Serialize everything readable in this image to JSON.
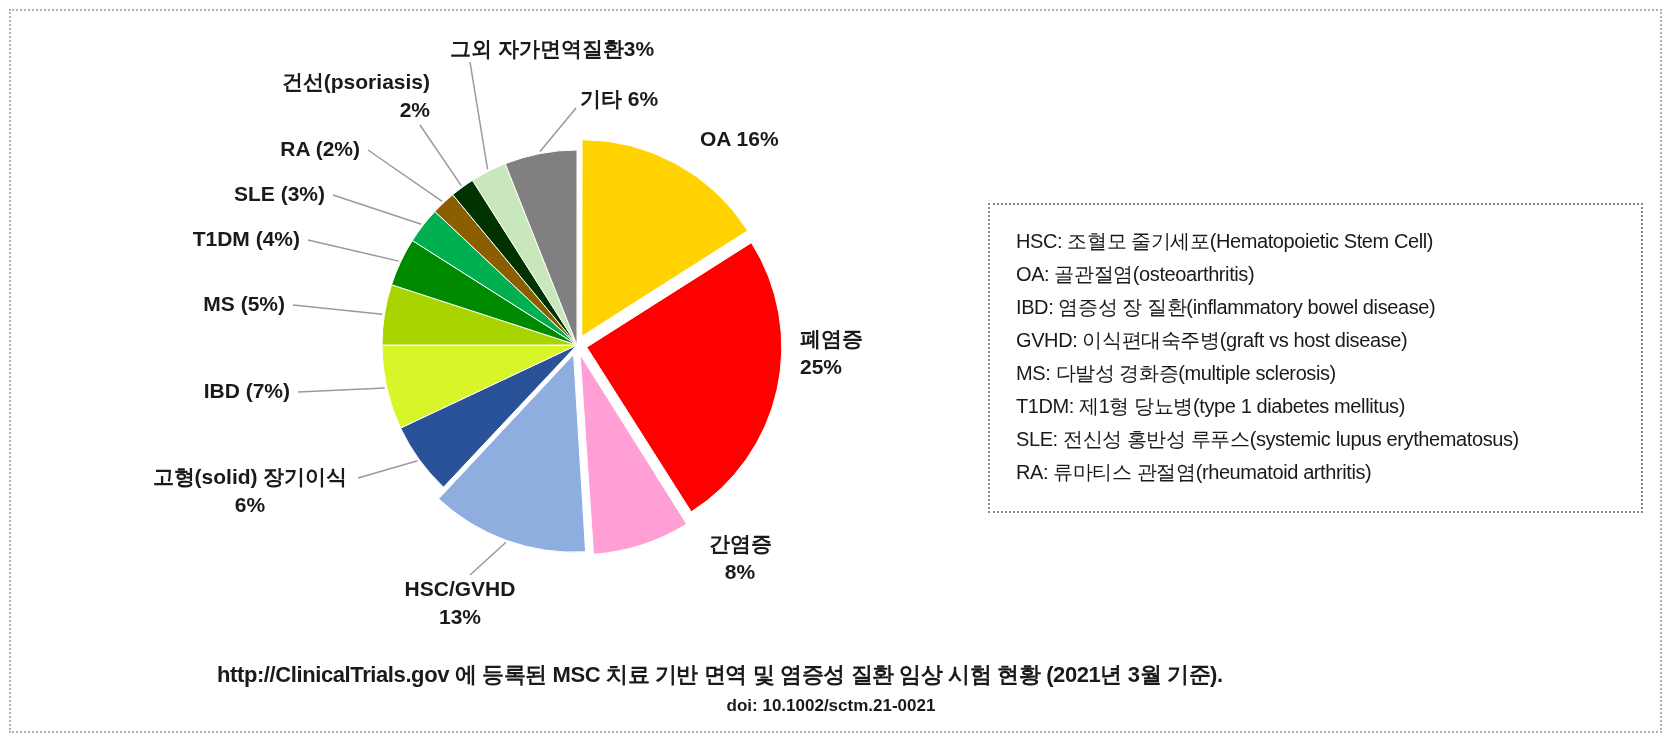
{
  "chart_data": {
    "type": "pie",
    "title": "http://ClinicalTrials.gov 에 등록된 MSC 치료 기반 면역 및 염증성 질환 임상 시험 현황 (2021년 3월 기준).",
    "subtitle": "doi: 10.1002/sctm.21-0021",
    "categories": [
      "OA",
      "폐염증",
      "간염증",
      "HSC/GVHD",
      "고형(solid) 장기이식",
      "IBD",
      "MS",
      "T1DM",
      "SLE",
      "RA",
      "건선(psoriasis)",
      "그외 자가면역질환",
      "기타"
    ],
    "values": [
      16,
      25,
      8,
      13,
      6,
      7,
      5,
      4,
      3,
      2,
      2,
      3,
      6
    ],
    "value_labels": [
      "16%",
      "25%",
      "8%",
      "13%",
      "6%",
      "(7%)",
      "(5%)",
      "(4%)",
      "(3%)",
      "(2%)",
      "2%",
      "3%",
      "6%"
    ],
    "colors": [
      "#ffd200",
      "#ff0000",
      "#ff9fd5",
      "#8faee0",
      "#2a5298",
      "#d8f52a",
      "#a8d400",
      "#008a00",
      "#00b050",
      "#8b5e00",
      "#003300",
      "#c9e7bd",
      "#808080"
    ],
    "annotations": [
      "HSC: 조혈모 줄기세포(Hematopoietic Stem Cell)",
      "OA: 골관절염(osteoarthritis)",
      "IBD: 염증성 장 질환(inflammatory bowel disease)",
      "GVHD: 이식편대숙주병(graft vs host disease)",
      "MS: 다발성 경화증(multiple sclerosis)",
      "T1DM: 제1형 당뇨병(type 1 diabetes mellitus)",
      "SLE: 전신성 홍반성 루푸스(systemic lupus erythematosus)",
      "RA: 류마티스 관절염(rheumatoid arthritis)"
    ]
  }
}
